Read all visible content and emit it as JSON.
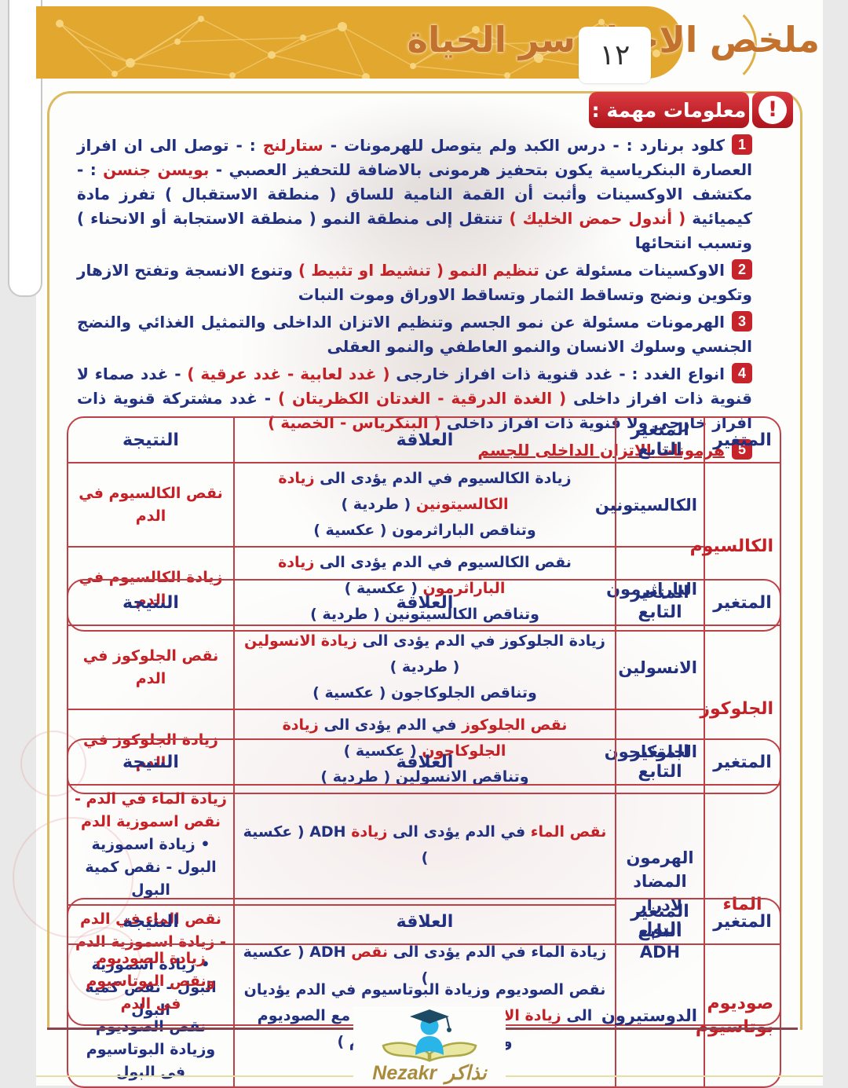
{
  "header": {
    "title": "ملخص الاحياء سر الحياة",
    "page_number": "١٢"
  },
  "info_banner": {
    "label": "معلومات مهمة :",
    "icon": "exclamation"
  },
  "points": [
    {
      "num": "1",
      "segments": [
        {
          "t": "كلود برنارد : - درس الكبد ولم يتوصل للهرمونات - ",
          "c": "b"
        },
        {
          "t": "ستارلنج",
          "c": "r"
        },
        {
          "t": " : - توصل الى ان افراز العصارة البنكرياسية يكون بتحفيز هرمونى بالاضافة للتحفيز العصبي - ",
          "c": "b"
        },
        {
          "t": "بويسن جنسن",
          "c": "r"
        },
        {
          "t": " : - مكتشف الاوكسينات وأثبت أن القمة النامية للساق ( منطقة الاستقبال ) تفرز مادة كيميائية ",
          "c": "b"
        },
        {
          "t": "( أندول حمض الخليك )",
          "c": "r"
        },
        {
          "t": " تنتقل إلى منطقة النمو ( منطقة الاستجابة أو الانحناء ) وتسبب انتحائها",
          "c": "b"
        }
      ]
    },
    {
      "num": "2",
      "segments": [
        {
          "t": "الاوكسينات مسئولة عن ",
          "c": "b"
        },
        {
          "t": "تنظيم النمو ( تنشيط او تثبيط )",
          "c": "r"
        },
        {
          "t": " وتنوع الانسجة وتفتح الازهار وتكوين ونضج وتساقط الثمار وتساقط الاوراق وموت النبات",
          "c": "b"
        }
      ]
    },
    {
      "num": "3",
      "segments": [
        {
          "t": "الهرمونات مسئولة عن نمو الجسم وتنظيم الاتزان الداخلى والتمثيل الغذائي والنضج الجنسي وسلوك الانسان والنمو العاطفي والنمو العقلى",
          "c": "b"
        }
      ]
    },
    {
      "num": "4",
      "segments": [
        {
          "t": "انواع الغدد : - غدد قنوية ذات افراز خارجى ",
          "c": "b"
        },
        {
          "t": "( غدد لعابية - غدد عرقية )",
          "c": "r"
        },
        {
          "t": " - غدد صماء لا قنوية ذات افراز داخلى ",
          "c": "b"
        },
        {
          "t": "( الغدة الدرقية - الغدتان الكظريتان )",
          "c": "r"
        },
        {
          "t": " - غدد مشتركة قنوية ذات افراز خارجى ولا قنوية ذات افراز داخلى ",
          "c": "b"
        },
        {
          "t": "( البنكرياس - الخصية )",
          "c": "r"
        }
      ]
    },
    {
      "num": "5",
      "segments": [
        {
          "t": "هرمونات الاتزان الداخلى للجسم",
          "c": "ru"
        }
      ]
    }
  ],
  "table_headers": {
    "variable": "المتغير",
    "dependent": "المتغير التابع",
    "relation": "العلاقة",
    "result": "النتيجة"
  },
  "tables": [
    {
      "variable": "الكالسيوم",
      "row_class": "rh75",
      "rows": [
        {
          "dependent": "الكالسيتونين",
          "relation": [
            {
              "t": "زيادة الكالسيوم في الدم يؤدى الى ",
              "c": "b"
            },
            {
              "t": "زيادة الكالسيتونين",
              "c": "r"
            },
            {
              "t": " ( طردية )",
              "c": "b"
            },
            {
              "br": true
            },
            {
              "t": "وتناقص الباراثرمون ( عكسية )",
              "c": "b"
            }
          ],
          "result": [
            {
              "t": "نقص الكالسيوم في الدم",
              "c": "r"
            }
          ]
        },
        {
          "dependent": "الباراثرمون",
          "relation": [
            {
              "t": "نقص الكالسيوم في الدم يؤدى الى ",
              "c": "b"
            },
            {
              "t": "زيادة الباراثرمون",
              "c": "r"
            },
            {
              "t": " ( عكسية )",
              "c": "b"
            },
            {
              "br": true
            },
            {
              "t": "وتناقص الكالسيتونين ( طردية )",
              "c": "b"
            }
          ],
          "result": [
            {
              "t": "زيادة الكالسيوم في الدم",
              "c": "r"
            }
          ]
        }
      ]
    },
    {
      "variable": "الجلوكوز",
      "row_class": "rh75",
      "rows": [
        {
          "dependent": "الانسولين",
          "relation": [
            {
              "t": "زيادة الجلوكوز في الدم يؤدى الى ",
              "c": "b"
            },
            {
              "t": "زيادة الانسولين",
              "c": "r"
            },
            {
              "t": " ( طردية )",
              "c": "b"
            },
            {
              "br": true
            },
            {
              "t": "وتناقص الجلوكاجون ( عكسية )",
              "c": "b"
            }
          ],
          "result": [
            {
              "t": "نقص الجلوكوز في الدم",
              "c": "r"
            }
          ]
        },
        {
          "dependent": "الجلوكاجون",
          "relation": [
            {
              "t": "نقص الجلوكوز",
              "c": "r"
            },
            {
              "t": " في الدم يؤدى الى ",
              "c": "b"
            },
            {
              "t": "زيادة الجلوكاجون",
              "c": "r"
            },
            {
              "t": " ( عكسية )",
              "c": "b"
            },
            {
              "br": true
            },
            {
              "t": "وتناقص الانسولين ( طردية )",
              "c": "b"
            }
          ],
          "result": [
            {
              "t": "زيادة الجلوكوز في الدم",
              "c": "r"
            }
          ]
        }
      ]
    },
    {
      "variable": "الماء",
      "dependent_merged": "الهرمون المضاد لادرار البول ADH",
      "row_class": "rh77",
      "rows": [
        {
          "dependent": "",
          "relation": [
            {
              "t": "نقص الماء",
              "c": "r"
            },
            {
              "t": " في الدم يؤدى الى ",
              "c": "b"
            },
            {
              "t": "زيادة",
              "c": "r"
            },
            {
              "t": " ADH ( عكسية )",
              "c": "b"
            }
          ],
          "result": [
            {
              "t": "زيادة الماء في الدم - نقص اسموزية الدم",
              "c": "r"
            },
            {
              "br": true
            },
            {
              "t": "• زيادة اسموزية البول - نقص كمية البول",
              "c": "b"
            }
          ]
        },
        {
          "dependent": "",
          "relation": [
            {
              "t": "زيادة الماء في الدم يؤدى الى ",
              "c": "b"
            },
            {
              "t": "نقص",
              "c": "r"
            },
            {
              "t": " ADH ( عكسية )",
              "c": "b"
            }
          ],
          "result": [
            {
              "t": "نقص الماء في الدم - زيادة اسموزية الدم",
              "c": "r"
            },
            {
              "br": true
            },
            {
              "t": "• زيادة اسموزية البول - نقص كمية البول",
              "c": "b"
            }
          ]
        }
      ]
    },
    {
      "variable": "صوديوم بوتاسيوم",
      "row_class": "rh112",
      "rows": [
        {
          "dependent": "الدوستيرون",
          "relation": [
            {
              "t": "نقص الصوديوم وزيادة البوتاسيوم في الدم يؤديان الى ",
              "c": "b"
            },
            {
              "t": "زيادة الالدوستيرون",
              "c": "r"
            },
            {
              "t": " ( عكسية مع الصوديوم وطردية مع البوتاسيوم )",
              "c": "b"
            }
          ],
          "result": [
            {
              "t": "زيادة الصوديوم ونقص البوتاسيوم في الدم",
              "c": "r"
            },
            {
              "br": true
            },
            {
              "t": "نقص الصوديوم وزيادة البوتاسيوم فى البول",
              "c": "b"
            }
          ]
        }
      ]
    }
  ],
  "footer": {
    "logo_ar": "نذاكر",
    "logo_en": "Nezakr"
  },
  "colors": {
    "gold": "#E2A72E",
    "title_orange": "#C2722D",
    "banner_red": "#C6232B",
    "navy_text": "#21307F",
    "red_text": "#C42127",
    "table_border": "#BE4047",
    "frame_gold": "#DCBA62",
    "logo_gold": "#A98B3E"
  }
}
